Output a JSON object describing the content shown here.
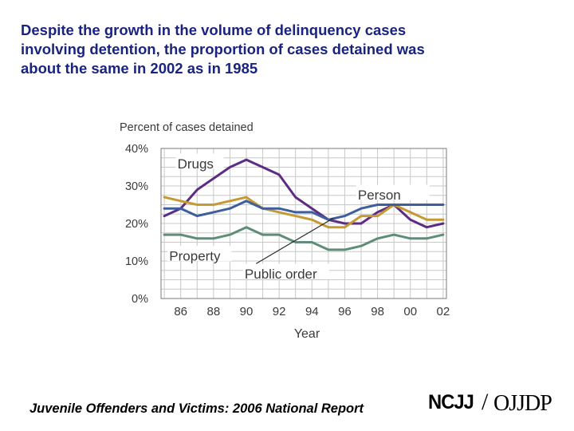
{
  "headline": "Despite the growth in the volume of delinquency cases\ninvolving detention, the proportion of cases detained was\nabout the same in 2002 as in 1985",
  "footer": {
    "source": "Juvenile Offenders and Victims: 2006 National Report",
    "logo_left": "NCJJ",
    "logo_separator": "/",
    "logo_right": "OJJDP"
  },
  "chart_data": {
    "type": "line",
    "title": "Percent of cases detained",
    "xlabel": "Year",
    "ylabel": "Percent of cases detained",
    "x": [
      1985,
      1986,
      1987,
      1988,
      1989,
      1990,
      1991,
      1992,
      1993,
      1994,
      1995,
      1996,
      1997,
      1998,
      1999,
      2000,
      2001,
      2002
    ],
    "xlim": [
      1984.8,
      2002.2
    ],
    "ylim": [
      0,
      40
    ],
    "x_ticks": [
      1986,
      1988,
      1990,
      1992,
      1994,
      1996,
      1998,
      2000,
      2002
    ],
    "x_tick_labels": [
      "86",
      "88",
      "90",
      "92",
      "94",
      "96",
      "98",
      "00",
      "02"
    ],
    "y_ticks": [
      0,
      10,
      20,
      30,
      40
    ],
    "y_tick_labels": [
      "0%",
      "10%",
      "20%",
      "30%",
      "40%"
    ],
    "grid": true,
    "series": [
      {
        "name": "Drugs",
        "color": "#5c2d82",
        "values": [
          22,
          24,
          29,
          32,
          35,
          37,
          35,
          33,
          27,
          24,
          21,
          20,
          20,
          23,
          25,
          21,
          19,
          20
        ]
      },
      {
        "name": "Public order",
        "color": "#c69a33",
        "values": [
          27,
          26,
          25,
          25,
          26,
          27,
          24,
          23,
          22,
          21,
          19,
          19,
          22,
          22,
          25,
          23,
          21,
          21
        ]
      },
      {
        "name": "Person",
        "color": "#3e5e9e",
        "values": [
          24,
          24,
          22,
          23,
          24,
          26,
          24,
          24,
          23,
          23,
          21,
          22,
          24,
          25,
          25,
          25,
          25,
          25
        ]
      },
      {
        "name": "Property",
        "color": "#5f8e78",
        "values": [
          17,
          17,
          16,
          16,
          17,
          19,
          17,
          17,
          15,
          15,
          13,
          13,
          14,
          16,
          17,
          16,
          16,
          17
        ]
      }
    ],
    "annotations": [
      {
        "text": "Drugs"
      },
      {
        "text": "Person"
      },
      {
        "text": "Property"
      },
      {
        "text": "Public order"
      }
    ]
  }
}
